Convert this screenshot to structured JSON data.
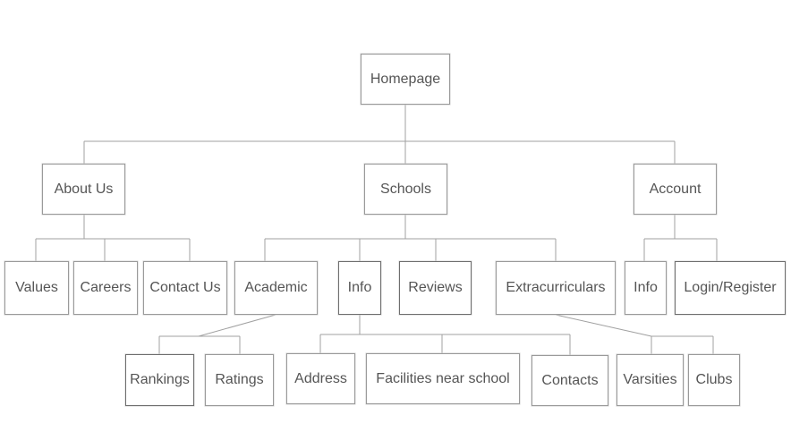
{
  "nodes": {
    "homepage": "Homepage",
    "about_us": "About Us",
    "schools": "Schools",
    "account": "Account",
    "values": "Values",
    "careers": "Careers",
    "contact_us": "Contact Us",
    "academic": "Academic",
    "info": "Info",
    "reviews": "Reviews",
    "extracurriculars": "Extracurriculars",
    "account_info": "Info",
    "login_register": "Login/Register",
    "rankings": "Rankings",
    "ratings": "Ratings",
    "address": "Address",
    "facilities": "Facilities near school",
    "contacts": "Contacts",
    "varsities": "Varsities",
    "clubs": "Clubs"
  },
  "colors": {
    "line": "#9a9a9a",
    "text": "#555555",
    "border": "#9a9a9a"
  }
}
